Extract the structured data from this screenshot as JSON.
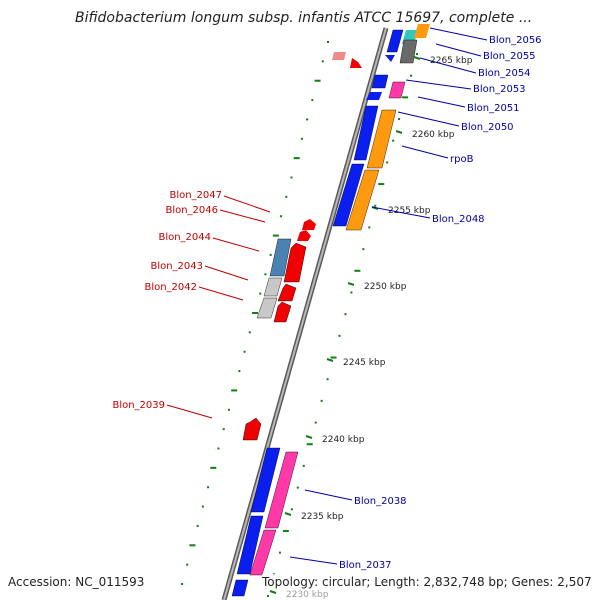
{
  "title": "Bifidobacterium longum subsp. infantis ATCC 15697, complete ...",
  "accession": "Accession: NC_011593",
  "topology": "Topology: circular; Length: 2,832,748 bp; Genes: 2,507",
  "colors": {
    "backbone": "#8a8a8a",
    "blue": "#0a1ef0",
    "orange": "#ff9a10",
    "magenta": "#ff3aa8",
    "grey": "#808080",
    "lightgrey": "#c8c8c8",
    "steelblue": "#4a82b4",
    "red": "#f00000",
    "salmon": "#f08a8a",
    "teal": "#30c8c0",
    "green": "#108010",
    "label_blue": "#0000a0",
    "label_red": "#c00000"
  },
  "ticks": [
    {
      "label": "2265 kbp"
    },
    {
      "label": "2260 kbp"
    },
    {
      "label": "2255 kbp"
    },
    {
      "label": "2250 kbp"
    },
    {
      "label": "2245 kbp"
    },
    {
      "label": "2240 kbp"
    },
    {
      "label": "2235 kbp"
    },
    {
      "label": "2230 kbp"
    }
  ],
  "right_labels": [
    {
      "text": "Blon_2056"
    },
    {
      "text": "Blon_2055"
    },
    {
      "text": "Blon_2054"
    },
    {
      "text": "Blon_2053"
    },
    {
      "text": "Blon_2051"
    },
    {
      "text": "Blon_2050"
    },
    {
      "text": "rpoB"
    },
    {
      "text": "Blon_2048"
    },
    {
      "text": "Blon_2038"
    },
    {
      "text": "Blon_2037"
    }
  ],
  "left_labels": [
    {
      "text": "Blon_2047"
    },
    {
      "text": "Blon_2046"
    },
    {
      "text": "Blon_2044"
    },
    {
      "text": "Blon_2043"
    },
    {
      "text": "Blon_2042"
    },
    {
      "text": "Blon_2039"
    }
  ]
}
